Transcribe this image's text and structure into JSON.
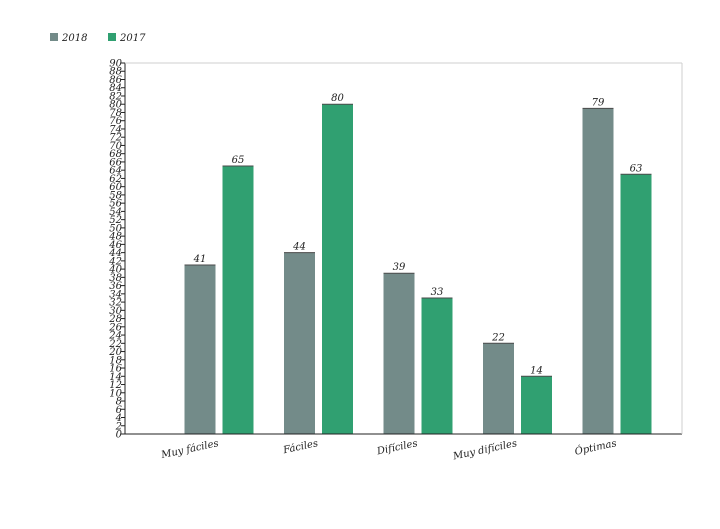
{
  "chart_data": {
    "type": "bar",
    "categories": [
      "Muy fáciles",
      "Fáciles",
      "Difíciles",
      "Muy difíciles",
      "Óptimas"
    ],
    "series": [
      {
        "name": "2018",
        "color": "#738b89",
        "values": [
          41,
          44,
          39,
          22,
          79
        ]
      },
      {
        "name": "2017",
        "color": "#30a071",
        "values": [
          65,
          80,
          33,
          14,
          63
        ]
      }
    ],
    "ylim": [
      0,
      90
    ],
    "ytick_step": 2,
    "grid": false,
    "legend_position": "top-left",
    "data_labels": true
  }
}
